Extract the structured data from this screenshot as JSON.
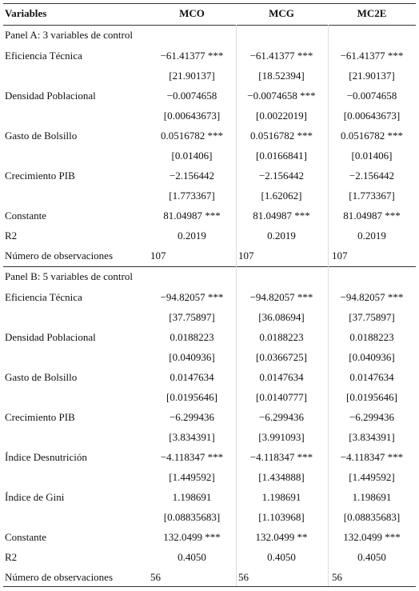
{
  "header": [
    "Variables",
    "MCO",
    "MCG",
    "MC2E"
  ],
  "panels": [
    {
      "title": "Panel A: 3 variables de control",
      "rows": [
        {
          "label": "Eficiencia Técnica",
          "values": [
            "−61.41377 ***",
            "−61.41377 ***",
            "−61.41377 ***"
          ]
        },
        {
          "values": [
            "[21.90137]",
            "[18.52394]",
            "[21.90137]"
          ]
        },
        {
          "label": "Densidad Poblacional",
          "values": [
            "−0.0074658",
            "−0.0074658 ***",
            "−0.0074658"
          ]
        },
        {
          "values": [
            "[0.00643673]",
            "[0.0022019]",
            "[0.00643673]"
          ]
        },
        {
          "label": "Gasto de Bolsillo",
          "values": [
            "0.0516782 ***",
            "0.0516782 ***",
            "0.0516782 ***"
          ]
        },
        {
          "values": [
            "[0.01406]",
            "[0.0166841]",
            "[0.01406]"
          ]
        },
        {
          "label": "Crecimiento PIB",
          "values": [
            "−2.156442",
            "−2.156442",
            "−2.156442"
          ]
        },
        {
          "values": [
            "[1.773367]",
            "[1.62062]",
            "[1.773367]"
          ]
        },
        {
          "label": "Constante",
          "values": [
            "81.04987 ***",
            "81.04987 ***",
            "81.04987 ***"
          ]
        },
        {
          "label": "R2",
          "values": [
            "0.2019",
            "0.2019",
            "0.2019"
          ]
        },
        {
          "label": "Número de observaciones",
          "values": [
            "107",
            "107",
            "107"
          ]
        }
      ]
    },
    {
      "title": "Panel B: 5 variables de control",
      "rows": [
        {
          "label": "Eficiencia Técnica",
          "values": [
            "−94.82057 ***",
            "−94.82057 ***",
            "−94.82057 ***"
          ]
        },
        {
          "values": [
            "[37.75897]",
            "[36.08694]",
            "[37.75897]"
          ]
        },
        {
          "label": "Densidad Poblacional",
          "values": [
            "0.0188223",
            "0.0188223",
            "0.0188223"
          ]
        },
        {
          "values": [
            "[0.040936]",
            "[0.0366725]",
            "[0.040936]"
          ]
        },
        {
          "label": "Gasto de Bolsillo",
          "values": [
            "0.0147634",
            "0.0147634",
            "0.0147634"
          ]
        },
        {
          "values": [
            "[0.0195646]",
            "[0.0140777]",
            "[0.0195646]"
          ]
        },
        {
          "label": "Crecimiento PIB",
          "values": [
            "−6.299436",
            "−6.299436",
            "−6.299436"
          ]
        },
        {
          "values": [
            "[3.834391]",
            "[3.991093]",
            "[3.834391]"
          ]
        },
        {
          "label": "Índice Desnutrición",
          "values": [
            "−4.118347 ***",
            "−4.118347 ***",
            "−4.118347 ***"
          ]
        },
        {
          "values": [
            "[1.449592]",
            "[1.434888]",
            "[1.449592]"
          ]
        },
        {
          "label": "Índice de Gini",
          "values": [
            "1.198691",
            "1.198691",
            "1.198691"
          ]
        },
        {
          "values": [
            "[0.08835683]",
            "[1.103968]",
            "[0.08835683]"
          ]
        },
        {
          "label": "Constante",
          "values": [
            "132.0499 ***",
            "132.0499 **",
            "132.0499 ***"
          ]
        },
        {
          "label": "R2",
          "values": [
            "0.4050",
            "0.4050",
            "0.4050"
          ]
        },
        {
          "label": "Número de observaciones",
          "values": [
            "56",
            "56",
            "56"
          ]
        }
      ]
    }
  ]
}
